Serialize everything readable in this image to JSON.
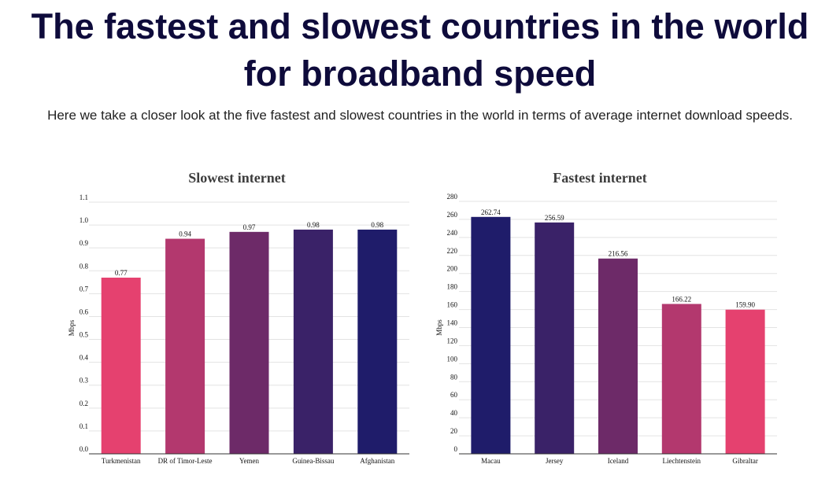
{
  "header": {
    "title_line1": "The fastest and slowest countries in the world",
    "title_line2": "for broadband speed",
    "subtitle": "Here we take a closer look at the five fastest and slowest countries in the world in terms of average internet download speeds."
  },
  "chart_data": [
    {
      "type": "bar",
      "title": "Slowest internet",
      "ylabel": "Mbps",
      "xlabel": "",
      "ylim": [
        0,
        1.1
      ],
      "ytick_step": 0.1,
      "ytick_decimals": 1,
      "value_decimals": 2,
      "grid": true,
      "categories": [
        "Turkmenistan",
        "DR of Timor-Leste",
        "Yemen",
        "Guinea-Bissau",
        "Afghanistan"
      ],
      "values": [
        0.77,
        0.94,
        0.97,
        0.98,
        0.98
      ],
      "colors": [
        "#e5416f",
        "#b3386e",
        "#6d2a68",
        "#3a2268",
        "#1f1c6a"
      ]
    },
    {
      "type": "bar",
      "title": "Fastest internet",
      "ylabel": "Mbps",
      "xlabel": "",
      "ylim": [
        0,
        280
      ],
      "ytick_step": 20,
      "ytick_decimals": 0,
      "value_decimals": 2,
      "grid": true,
      "categories": [
        "Macau",
        "Jersey",
        "Iceland",
        "Liechtenstein",
        "Gibraltar"
      ],
      "values": [
        262.74,
        256.59,
        216.56,
        166.22,
        159.9
      ],
      "colors": [
        "#1f1c6a",
        "#3a2268",
        "#6d2a68",
        "#b3386e",
        "#e5416f"
      ]
    }
  ]
}
